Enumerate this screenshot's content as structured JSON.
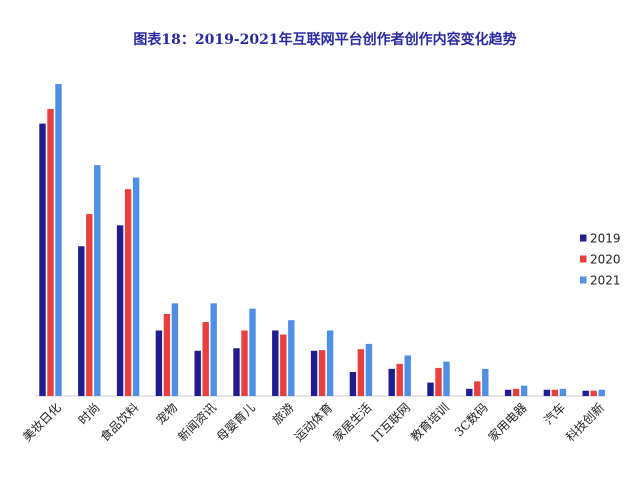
{
  "chart_data": {
    "type": "bar",
    "title": "图表18：2019-2021年互联网平台创作者创作内容变化趋势",
    "xlabel": "",
    "ylabel": "",
    "ylim": [
      0,
      1
    ],
    "grid": false,
    "legend_position": "right",
    "categories": [
      "美妆日化",
      "时尚",
      "食品饮料",
      "宠物",
      "新闻资讯",
      "母婴育儿",
      "旅游",
      "运动体育",
      "家居生活",
      "IT互联网",
      "教育培训",
      "3C数码",
      "家用电器",
      "汽车",
      "科技创新"
    ],
    "series": [
      {
        "name": "2019",
        "color": "#1f1d8f",
        "values": [
          0.873,
          0.48,
          0.547,
          0.21,
          0.145,
          0.153,
          0.21,
          0.145,
          0.077,
          0.087,
          0.043,
          0.023,
          0.02,
          0.02,
          0.017
        ]
      },
      {
        "name": "2020",
        "color": "#e8403f",
        "values": [
          0.92,
          0.583,
          0.663,
          0.263,
          0.237,
          0.21,
          0.197,
          0.147,
          0.15,
          0.103,
          0.09,
          0.047,
          0.023,
          0.02,
          0.017
        ]
      },
      {
        "name": "2021",
        "color": "#4f8fe6",
        "values": [
          1.0,
          0.74,
          0.7,
          0.297,
          0.297,
          0.28,
          0.243,
          0.21,
          0.167,
          0.13,
          0.11,
          0.087,
          0.033,
          0.023,
          0.02
        ]
      }
    ]
  }
}
